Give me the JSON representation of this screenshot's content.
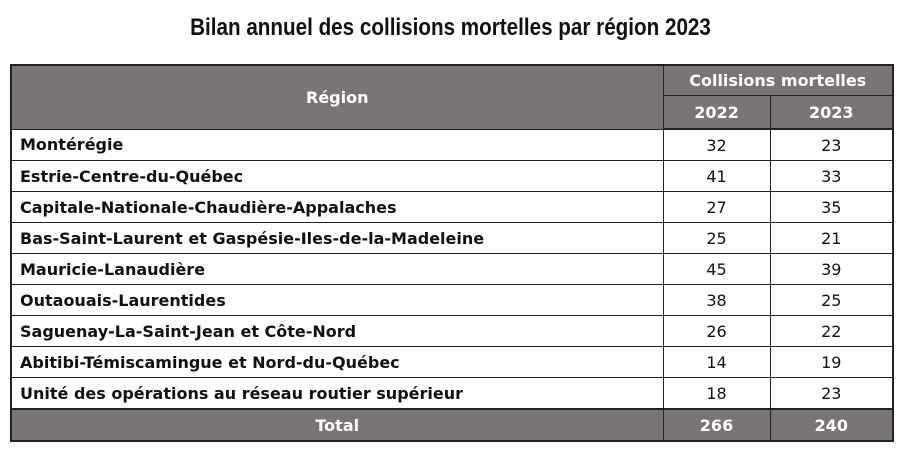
{
  "title": "Bilan annuel des collisions mortelles par région 2023",
  "table": {
    "header_region": "Région",
    "header_group": "Collisions mortelles",
    "year_1": "2022",
    "year_2": "2023",
    "rows": [
      {
        "region": "Montérégie",
        "v2022": "32",
        "v2023": "23"
      },
      {
        "region": "Estrie-Centre-du-Québec",
        "v2022": "41",
        "v2023": "33"
      },
      {
        "region": "Capitale-Nationale-Chaudière-Appalaches",
        "v2022": "27",
        "v2023": "35"
      },
      {
        "region": "Bas-Saint-Laurent et Gaspésie-Iles-de-la-Madeleine",
        "v2022": "25",
        "v2023": "21"
      },
      {
        "region": "Mauricie-Lanaudière",
        "v2022": "45",
        "v2023": "39"
      },
      {
        "region": "Outaouais-Laurentides",
        "v2022": "38",
        "v2023": "25"
      },
      {
        "region": "Saguenay-La-Saint-Jean et Côte-Nord",
        "v2022": "26",
        "v2023": "22"
      },
      {
        "region": "Abitibi-Témiscamingue et Nord-du-Québec",
        "v2022": "14",
        "v2023": "19"
      },
      {
        "region": "Unité des opérations au réseau routier supérieur",
        "v2022": "18",
        "v2023": "23"
      }
    ],
    "total_label": "Total",
    "total_2022": "266",
    "total_2023": "240"
  },
  "colors": {
    "header_bg": "#7b7474",
    "header_text": "#ffffff",
    "border": "#222222"
  }
}
